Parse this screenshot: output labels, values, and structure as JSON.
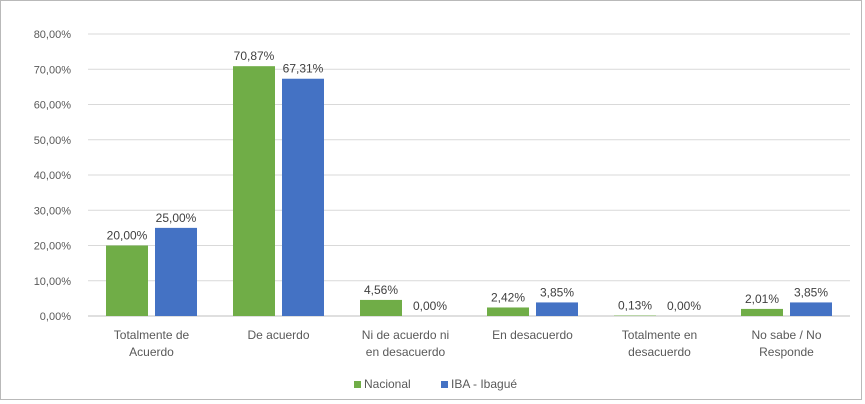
{
  "chart_data": {
    "type": "bar",
    "categories": [
      [
        "Totalmente de",
        "Acuerdo"
      ],
      [
        "De acuerdo"
      ],
      [
        "Ni de acuerdo ni",
        "en desacuerdo"
      ],
      [
        "En desacuerdo"
      ],
      [
        "Totalmente en",
        "desacuerdo"
      ],
      [
        "No sabe / No",
        "Responde"
      ]
    ],
    "series": [
      {
        "name": "Nacional",
        "color": "#70ad47",
        "values": [
          20.0,
          70.87,
          4.56,
          2.42,
          0.13,
          2.01
        ],
        "labels": [
          "20,00%",
          "70,87%",
          "4,56%",
          "2,42%",
          "0,13%",
          "2,01%"
        ]
      },
      {
        "name": "IBA - Ibagué",
        "color": "#4472c4",
        "values": [
          25.0,
          67.31,
          0.0,
          3.85,
          0.0,
          3.85
        ],
        "labels": [
          "25,00%",
          "67,31%",
          "0,00%",
          "3,85%",
          "0,00%",
          "3,85%"
        ]
      }
    ],
    "yticks": [
      "0,00%",
      "10,00%",
      "20,00%",
      "30,00%",
      "40,00%",
      "50,00%",
      "60,00%",
      "70,00%",
      "80,00%"
    ],
    "ylim": [
      0,
      80
    ],
    "grid": true,
    "legend": "bottom"
  }
}
